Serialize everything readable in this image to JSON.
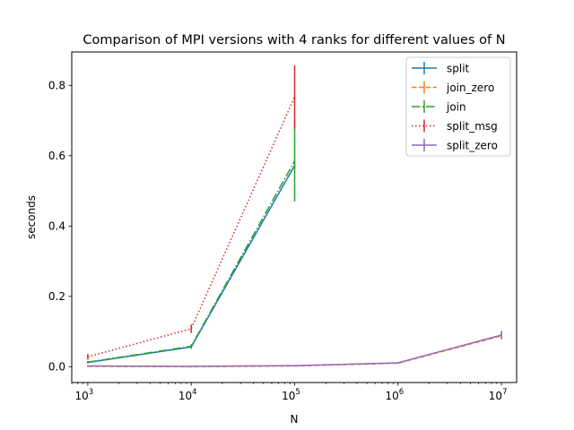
{
  "chart_data": {
    "type": "line",
    "title": "Comparison of MPI versions with 4 ranks for different values of N",
    "xlabel": "N",
    "ylabel": "seconds",
    "xscale": "log",
    "xlim": [
      700,
      14000000
    ],
    "ylim": [
      -0.045,
      0.895
    ],
    "xticks": [
      {
        "value": 1000,
        "base": "10",
        "exp": "3"
      },
      {
        "value": 10000,
        "base": "10",
        "exp": "4"
      },
      {
        "value": 100000,
        "base": "10",
        "exp": "5"
      },
      {
        "value": 1000000,
        "base": "10",
        "exp": "6"
      },
      {
        "value": 10000000,
        "base": "10",
        "exp": "7"
      }
    ],
    "yticks": [
      {
        "value": 0.0,
        "label": "0.0"
      },
      {
        "value": 0.2,
        "label": "0.2"
      },
      {
        "value": 0.4,
        "label": "0.4"
      },
      {
        "value": 0.6,
        "label": "0.6"
      },
      {
        "value": 0.8,
        "label": "0.8"
      }
    ],
    "legend_position": "top-right",
    "grid": false,
    "series": [
      {
        "name": "split",
        "color": "#1f77b4",
        "dash": "solid",
        "x": [
          1000,
          10000,
          100000
        ],
        "y": [
          0.012,
          0.056,
          0.572
        ],
        "err": [
          0.003,
          0.005,
          0.01
        ]
      },
      {
        "name": "join_zero",
        "color": "#ff7f0e",
        "dash": "dashed",
        "x": [
          1000,
          10000,
          100000,
          1000000,
          10000000
        ],
        "y": [
          0.001,
          0.0,
          0.002,
          0.01,
          0.088
        ],
        "err": [
          0.001,
          0.001,
          0.001,
          0.002,
          0.01
        ]
      },
      {
        "name": "join",
        "color": "#2ca02c",
        "dash": "dashdot",
        "x": [
          1000,
          10000,
          100000
        ],
        "y": [
          0.013,
          0.058,
          0.585
        ],
        "err": [
          0.003,
          0.006,
          0.115
        ]
      },
      {
        "name": "split_msg",
        "color": "#d62728",
        "dash": "dotted",
        "x": [
          1000,
          10000,
          100000
        ],
        "y": [
          0.028,
          0.108,
          0.767
        ],
        "err": [
          0.008,
          0.012,
          0.09
        ]
      },
      {
        "name": "split_zero",
        "color": "#9467bd",
        "dash": "solid",
        "x": [
          1000,
          10000,
          100000,
          1000000,
          10000000
        ],
        "y": [
          0.002,
          0.001,
          0.003,
          0.011,
          0.09
        ],
        "err": [
          0.001,
          0.001,
          0.001,
          0.002,
          0.012
        ]
      }
    ]
  }
}
